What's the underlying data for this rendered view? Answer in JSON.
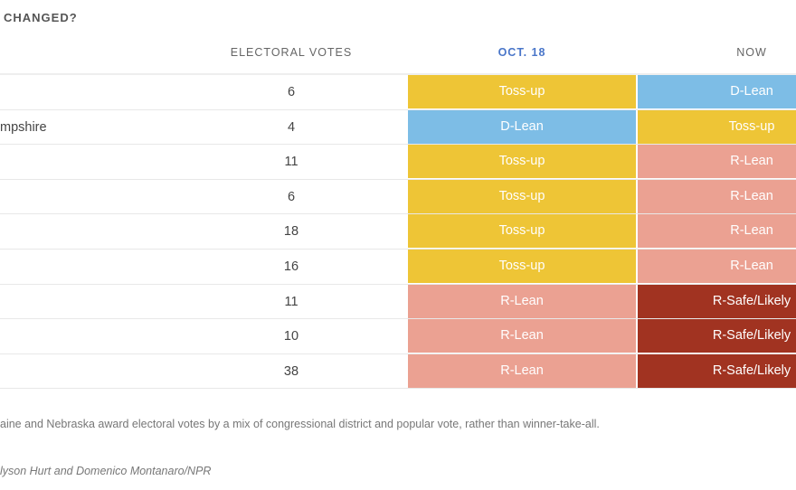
{
  "title": "CHANGED?",
  "headers": {
    "electoral_votes": "ELECTORAL VOTES",
    "oct18": "OCT. 18",
    "now": "NOW"
  },
  "colors": {
    "Toss-up": "#EEC536",
    "D-Lean": "#7DBDE6",
    "R-Lean": "#EBA192",
    "R-Safe/Likely": "#A13321",
    "oct18_header": "#4A76C9"
  },
  "rows": [
    {
      "state": "",
      "ev": "6",
      "oct18": "Toss-up",
      "now": "D-Lean"
    },
    {
      "state": "mpshire",
      "ev": "4",
      "oct18": "D-Lean",
      "now": "Toss-up"
    },
    {
      "state": "",
      "ev": "11",
      "oct18": "Toss-up",
      "now": "R-Lean"
    },
    {
      "state": "",
      "ev": "6",
      "oct18": "Toss-up",
      "now": "R-Lean"
    },
    {
      "state": "",
      "ev": "18",
      "oct18": "Toss-up",
      "now": "R-Lean"
    },
    {
      "state": "",
      "ev": "16",
      "oct18": "Toss-up",
      "now": "R-Lean"
    },
    {
      "state": "",
      "ev": "11",
      "oct18": "R-Lean",
      "now": "R-Safe/Likely"
    },
    {
      "state": "",
      "ev": "10",
      "oct18": "R-Lean",
      "now": "R-Safe/Likely"
    },
    {
      "state": "",
      "ev": "38",
      "oct18": "R-Lean",
      "now": "R-Safe/Likely"
    }
  ],
  "note": "aine and Nebraska award electoral votes by a mix of congressional district and popular vote, rather than winner-take-all.",
  "credit": "lyson Hurt and Domenico Montanaro/NPR"
}
